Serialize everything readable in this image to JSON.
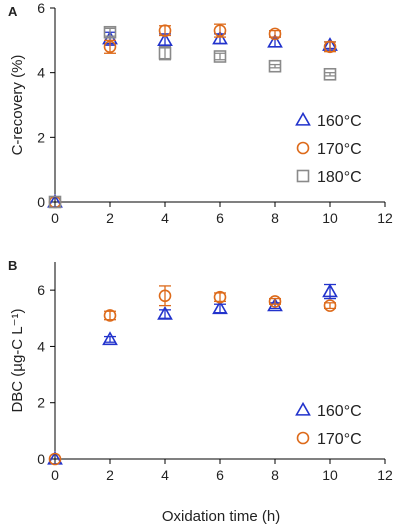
{
  "colors": {
    "s160": "#2233cc",
    "s170": "#dd6a1a",
    "s180": "#8a8a8a",
    "axis": "#000000"
  },
  "xlabel": "Oxidation time (h)",
  "chart_data": [
    {
      "panel": "A",
      "type": "scatter",
      "ylabel": "C-recovery (%)",
      "xlim": [
        0,
        12
      ],
      "ylim": [
        0,
        6
      ],
      "xticks": [
        0,
        2,
        4,
        6,
        8,
        10,
        12
      ],
      "yticks": [
        0,
        2,
        4,
        6
      ],
      "grid": false,
      "legend_position": "bottom-right",
      "series": [
        {
          "name": "160°C",
          "marker": "triangle",
          "color_key": "s160",
          "points": [
            {
              "x": 0,
              "y": 0.0,
              "err": 0.0
            },
            {
              "x": 2,
              "y": 5.05,
              "err": 0.2
            },
            {
              "x": 4,
              "y": 5.0,
              "err": 0.2
            },
            {
              "x": 6,
              "y": 5.05,
              "err": 0.15
            },
            {
              "x": 8,
              "y": 4.95,
              "err": 0.15
            },
            {
              "x": 10,
              "y": 4.85,
              "err": 0.1
            }
          ]
        },
        {
          "name": "170°C",
          "marker": "circle",
          "color_key": "s170",
          "points": [
            {
              "x": 0,
              "y": 0.0,
              "err": 0.0
            },
            {
              "x": 2,
              "y": 4.8,
              "err": 0.2
            },
            {
              "x": 4,
              "y": 5.3,
              "err": 0.15
            },
            {
              "x": 6,
              "y": 5.3,
              "err": 0.2
            },
            {
              "x": 8,
              "y": 5.2,
              "err": 0.1
            },
            {
              "x": 10,
              "y": 4.8,
              "err": 0.15
            }
          ]
        },
        {
          "name": "180°C",
          "marker": "square",
          "color_key": "s180",
          "points": [
            {
              "x": 0,
              "y": 0.0,
              "err": 0.0
            },
            {
              "x": 2,
              "y": 5.25,
              "err": 0.12
            },
            {
              "x": 4,
              "y": 4.6,
              "err": 0.2
            },
            {
              "x": 6,
              "y": 4.5,
              "err": 0.1
            },
            {
              "x": 8,
              "y": 4.2,
              "err": 0.05
            },
            {
              "x": 10,
              "y": 3.95,
              "err": 0.05
            }
          ]
        }
      ]
    },
    {
      "panel": "B",
      "type": "scatter",
      "ylabel": "DBC (µg-C L⁻¹)",
      "xlim": [
        0,
        12
      ],
      "ylim": [
        0,
        7
      ],
      "xticks": [
        0,
        2,
        4,
        6,
        8,
        10,
        12
      ],
      "yticks": [
        0,
        2,
        4,
        6
      ],
      "grid": false,
      "legend_position": "bottom-right",
      "series": [
        {
          "name": "160°C",
          "marker": "triangle",
          "color_key": "s160",
          "points": [
            {
              "x": 0,
              "y": 0.0,
              "err": 0.0
            },
            {
              "x": 2,
              "y": 4.25,
              "err": 0.1
            },
            {
              "x": 4,
              "y": 5.15,
              "err": 0.15
            },
            {
              "x": 6,
              "y": 5.35,
              "err": 0.15
            },
            {
              "x": 8,
              "y": 5.45,
              "err": 0.1
            },
            {
              "x": 10,
              "y": 5.95,
              "err": 0.25
            }
          ]
        },
        {
          "name": "170°C",
          "marker": "circle",
          "color_key": "s170",
          "points": [
            {
              "x": 0,
              "y": 0.0,
              "err": 0.0
            },
            {
              "x": 2,
              "y": 5.1,
              "err": 0.15
            },
            {
              "x": 4,
              "y": 5.8,
              "err": 0.35
            },
            {
              "x": 6,
              "y": 5.75,
              "err": 0.15
            },
            {
              "x": 8,
              "y": 5.6,
              "err": 0.1
            },
            {
              "x": 10,
              "y": 5.45,
              "err": 0.1
            }
          ]
        }
      ]
    }
  ]
}
